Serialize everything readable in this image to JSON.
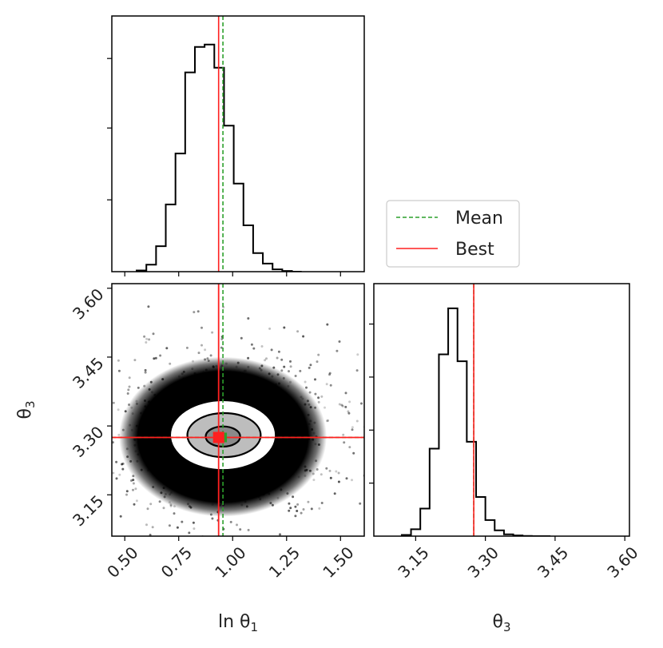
{
  "chart_data": {
    "type": "corner",
    "title": "",
    "parameters": [
      {
        "label_base": "ln θ",
        "label_sub": "1",
        "range": [
          0.44,
          1.61
        ],
        "ticks": [
          "0.50",
          "0.75",
          "1.00",
          "1.25",
          "1.50"
        ]
      },
      {
        "label_base": "θ",
        "label_sub": "3",
        "range": [
          3.06,
          3.61
        ],
        "ticks": [
          "3.15",
          "3.30",
          "3.45",
          "3.60"
        ]
      }
    ],
    "mean": [
      0.955,
      3.275
    ],
    "best": [
      0.935,
      3.275
    ],
    "histograms": [
      {
        "param": "ln θ1",
        "bin_edges": [
          0.555,
          0.6,
          0.645,
          0.69,
          0.735,
          0.78,
          0.825,
          0.87,
          0.915,
          0.96,
          1.005,
          1.05,
          1.095,
          1.14,
          1.185,
          1.23,
          1.275,
          1.32
        ],
        "counts": [
          0.005,
          0.03,
          0.11,
          0.29,
          0.51,
          0.86,
          0.97,
          0.98,
          0.88,
          0.63,
          0.38,
          0.2,
          0.08,
          0.035,
          0.01,
          0.003,
          0.0
        ]
      },
      {
        "param": "θ3",
        "bin_edges": [
          3.12,
          3.14,
          3.16,
          3.18,
          3.2,
          3.22,
          3.24,
          3.26,
          3.28,
          3.3,
          3.32,
          3.34,
          3.36,
          3.38,
          3.4,
          3.42,
          3.44
        ],
        "counts": [
          0.005,
          0.03,
          0.12,
          0.38,
          0.79,
          0.99,
          0.76,
          0.41,
          0.17,
          0.07,
          0.025,
          0.008,
          0.003,
          0.001,
          0.0,
          0.0
        ]
      }
    ],
    "contours": [
      {
        "level": "inner",
        "cx": 0.955,
        "cy": 3.277,
        "rx": 0.08,
        "ry": 0.022
      },
      {
        "level": "middle",
        "cx": 0.96,
        "cy": 3.28,
        "rx": 0.17,
        "ry": 0.048
      },
      {
        "level": "outer",
        "cx": 0.955,
        "cy": 3.28,
        "rx": 0.245,
        "ry": 0.076
      }
    ],
    "legend": {
      "position": "upper-right",
      "entries": [
        {
          "label": "Mean",
          "color": "#2ca02c",
          "style": "dashed"
        },
        {
          "label": "Best",
          "color": "#ff2020",
          "style": "solid"
        }
      ]
    },
    "colors": {
      "mean": "#2ca02c",
      "best": "#ff2020",
      "hist": "#000000"
    }
  }
}
